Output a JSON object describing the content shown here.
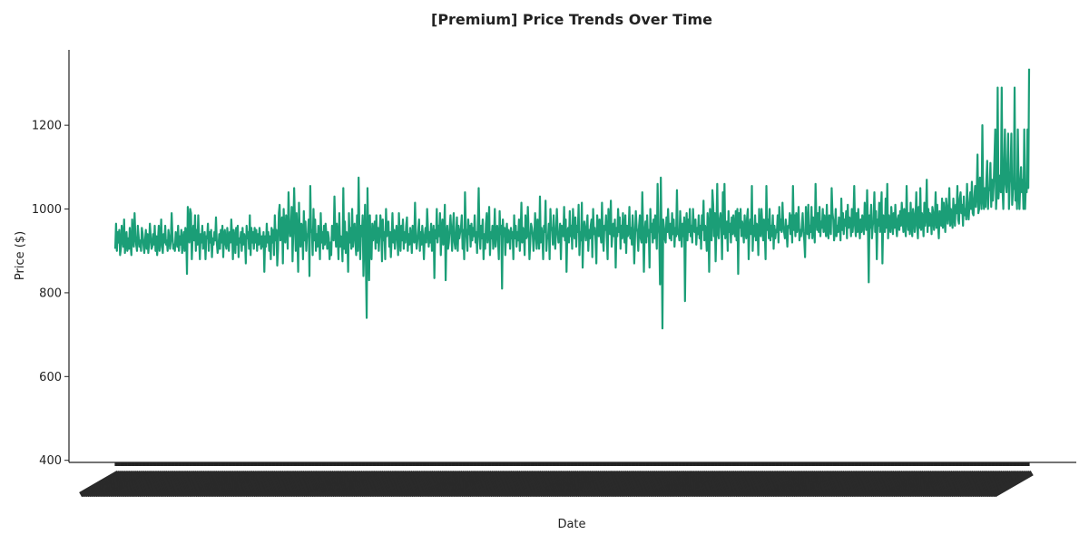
{
  "chart_data": {
    "type": "line",
    "title": "[Premium] Price Trends Over Time",
    "xlabel": "Date",
    "ylabel": "Price ($)",
    "ylim": [
      395,
      1380
    ],
    "yticks": [
      400,
      600,
      800,
      1000,
      1200
    ],
    "grid": false,
    "legend": "none",
    "line_color": "#1b9e77",
    "x_tick_labels_note": "",
    "series": [
      {
        "name": "",
        "values": [
          905,
          965,
          900,
          945,
          920,
          950,
          890,
          905,
          960,
          930,
          910,
          975,
          895,
          920,
          945,
          900,
          930,
          905,
          955,
          915,
          890,
          975,
          925,
          910,
          990,
          935,
          915,
          900,
          960,
          935,
          910,
          925,
          900,
          955,
          940,
          915,
          895,
          925,
          950,
          905,
          940,
          895,
          920,
          965,
          935,
          905,
          910,
          940,
          915,
          960,
          900,
          935,
          890,
          925,
          960,
          900,
          930,
          975,
          910,
          895,
          940,
          920,
          960,
          915,
          925,
          900,
          950,
          930,
          905,
          925,
          990,
          935,
          905,
          915,
          900,
          945,
          930,
          910,
          960,
          900,
          935,
          915,
          950,
          895,
          925,
          945,
          900,
          955,
          940,
          845,
          1005,
          960,
          920,
          1000,
          990,
          880,
          935,
          960,
          925,
          985,
          900,
          950,
          915,
          985,
          930,
          880,
          940,
          920,
          960,
          905,
          915,
          945,
          880,
          935,
          930,
          965,
          900,
          945,
          920,
          950,
          885,
          930,
          915,
          945,
          925,
          980,
          920,
          895,
          910,
          940,
          905,
          950,
          920,
          960,
          885,
          940,
          950,
          915,
          905,
          955,
          930,
          900,
          945,
          920,
          975,
          940,
          880,
          950,
          930,
          895,
          955,
          915,
          960,
          885,
          930,
          920,
          945,
          900,
          955,
          915,
          940,
          925,
          870,
          960,
          930,
          945,
          905,
          985,
          890,
          955,
          920,
          945,
          905,
          955,
          920,
          950,
          900,
          940,
          915,
          955,
          930,
          905,
          935,
          910,
          945,
          850,
          935,
          910,
          965,
          920,
          945,
          900,
          935,
          880,
          955,
          920,
          950,
          890,
          985,
          925,
          950,
          865,
          905,
          990,
          1010,
          925,
          955,
          980,
          870,
          1000,
          940,
          920,
          985,
          960,
          905,
          1040,
          965,
          935,
          950,
          1005,
          875,
          950,
          1050,
          965,
          900,
          990,
          930,
          850,
          1015,
          935,
          910,
          965,
          955,
          880,
          995,
          925,
          970,
          900,
          940,
          940,
          975,
          840,
          1055,
          945,
          950,
          890,
          1000,
          925,
          975,
          900,
          940,
          910,
          960,
          935,
          880,
          990,
          920,
          945,
          905,
          960,
          915,
          965,
          940,
          905,
          945,
          930,
          880,
          920,
          890,
          960,
          945,
          925,
          1030,
          950,
          910,
          965,
          935,
          880,
          990,
          910,
          935,
          925,
          875,
          1050,
          905,
          970,
          895,
          945,
          930,
          850,
          990,
          920,
          955,
          905,
          1000,
          910,
          945,
          965,
          920,
          890,
          985,
          900,
          1075,
          945,
          880,
          960,
          935,
          985,
          840,
          920,
          1010,
          870,
          740,
          1050,
          925,
          830,
          985,
          900,
          880,
          965,
          925,
          945,
          970,
          905,
          985,
          920,
          955,
          900,
          940,
          985,
          960,
          875,
          975,
          925,
          945,
          880,
          1000,
          935,
          955,
          970,
          910,
          945,
          885,
          930,
          990,
          920,
          950,
          905,
          935,
          960,
          935,
          890,
          990,
          935,
          900,
          960,
          925,
          975,
          905,
          945,
          920,
          960,
          980,
          900,
          940,
          915,
          955,
          935,
          895,
          960,
          940,
          920,
          1015,
          935,
          905,
          925,
          950,
          975,
          900,
          945,
          915,
          960,
          930,
          880,
          935,
          955,
          920,
          1000,
          955,
          910,
          945,
          920,
          965,
          900,
          935,
          960,
          835,
          950,
          930,
          1000,
          920,
          960,
          935,
          990,
          890,
          950,
          975,
          915,
          945,
          1010,
          830,
          935,
          960,
          905,
          920,
          955,
          985,
          945,
          900,
          955,
          990,
          920,
          905,
          940,
          980,
          900,
          960,
          930,
          945,
          955,
          985,
          905,
          950,
          880,
          1040,
          955,
          930,
          900,
          975,
          940,
          960,
          910,
          965,
          925,
          955,
          935,
          985,
          920,
          945,
          895,
          965,
          1050,
          935,
          905,
          960,
          930,
          975,
          880,
          940,
          905,
          965,
          990,
          920,
          950,
          1005,
          890,
          945,
          930,
          960,
          905,
          935,
          1000,
          910,
          945,
          960,
          925,
          880,
          995,
          940,
          960,
          810,
          975,
          935,
          955,
          890,
          940,
          965,
          920,
          950,
          940,
          905,
          955,
          930,
          945,
          880,
          985,
          930,
          960,
          910,
          945,
          925,
          975,
          900,
          940,
          1015,
          920,
          955,
          945,
          890,
          985,
          930,
          935,
          1005,
          945,
          880,
          920,
          965,
          955,
          940,
          900,
          930,
          990,
          945,
          905,
          975,
          950,
          905,
          1030,
          920,
          955,
          935,
          880,
          960,
          945,
          1020,
          900,
          935,
          930,
          965,
          880,
          1000,
          950,
          955,
          915,
          985,
          935,
          905,
          950,
          1000,
          945,
          920,
          930,
          965,
          880,
          960,
          940,
          935,
          1005,
          925,
          975,
          850,
          945,
          955,
          920,
          995,
          935,
          960,
          905,
          1000,
          955,
          930,
          980,
          910,
          960,
          945,
          1010,
          890,
          945,
          925,
          1015,
          860,
          935,
          970,
          945,
          925,
          960,
          985,
          900,
          950,
          930,
          960,
          975,
          885,
          1000,
          940,
          955,
          925,
          870,
          985,
          960,
          935,
          975,
          945,
          920,
          1015,
          935,
          900,
          960,
          950,
          985,
          930,
          880,
          1000,
          955,
          940,
          1020,
          910,
          945,
          965,
          935,
          975,
          860,
          955,
          935,
          1000,
          945,
          980,
          905,
          960,
          930,
          990,
          950,
          920,
          985,
          895,
          960,
          935,
          945,
          1005,
          930,
          955,
          915,
          985,
          945,
          870,
          930,
          995,
          955,
          945,
          900,
          960,
          985,
          930,
          920,
          1040,
          955,
          850,
          945,
          970,
          920,
          985,
          935,
          950,
          860,
          1000,
          945,
          965,
          920,
          975,
          930,
          985,
          950,
          905,
          1060,
          960,
          940,
          820,
          1075,
          935,
          715,
          975,
          955,
          930,
          920,
          980,
          945,
          1000,
          950,
          930,
          965,
          925,
          990,
          940,
          975,
          910,
          955,
          935,
          1045,
          940,
          945,
          925,
          995,
          950,
          910,
          965,
          935,
          980,
          780,
          950,
          990,
          925,
          975,
          945,
          1000,
          935,
          960,
          920,
          1000,
          950,
          945,
          975,
          915,
          955,
          940,
          985,
          930,
          960,
          905,
          985,
          950,
          1020,
          925,
          960,
          945,
          900,
          990,
          960,
          850,
          1000,
          945,
          925,
          1045,
          1010,
          935,
          990,
          875,
          955,
          1060,
          940,
          930,
          975,
          990,
          965,
          880,
          1040,
          940,
          1060,
          930,
          960,
          970,
          900,
          995,
          945,
          965,
          920,
          980,
          940,
          985,
          950,
          935,
          995,
          925,
          1000,
          845,
          990,
          955,
          1000,
          935,
          970,
          950,
          920,
          985,
          950,
          930,
          980,
          1000,
          880,
          950,
          975,
          940,
          1055,
          900,
          960,
          935,
          985,
          925,
          965,
          955,
          890,
          1000,
          945,
          935,
          1000,
          960,
          925,
          975,
          945,
          880,
          1055,
          950,
          975,
          930,
          1000,
          925,
          960,
          935,
          985,
          905,
          960,
          930,
          950,
          945,
          985,
          920,
          1005,
          950,
          975,
          945,
          1015,
          960,
          945,
          930,
          975,
          945,
          910,
          960,
          955,
          990,
          940,
          985,
          920,
          1055,
          950,
          985,
          935,
          990,
          945,
          965,
          1005,
          925,
          950,
          935,
          960,
          990,
          945,
          925,
          885,
          1005,
          945,
          940,
          1010,
          930,
          960,
          945,
          1005,
          930,
          980,
          960,
          920,
          1060,
          975,
          950,
          990,
          945,
          1005,
          935,
          970,
          955,
          1000,
          945,
          985,
          960,
          935,
          1010,
          945,
          930,
          985,
          960,
          940,
          1050,
          990,
          975,
          925,
          945,
          1000,
          935,
          960,
          945,
          980,
          965,
          925,
          1025,
          950,
          990,
          940,
          975,
          960,
          995,
          930,
          1010,
          955,
          980,
          975,
          935,
          1000,
          945,
          975,
          1055,
          960,
          935,
          990,
          945,
          1000,
          960,
          930,
          975,
          945,
          985,
          960,
          940,
          1015,
          975,
          950,
          1045,
          960,
          825,
          985,
          955,
          1010,
          930,
          960,
          975,
          1040,
          945,
          995,
          880,
          975,
          960,
          1015,
          945,
          990,
          1040,
          870,
          985,
          960,
          945,
          1025,
          955,
          1060,
          930,
          985,
          960,
          945,
          1005,
          975,
          940,
          990,
          955,
          1010,
          960,
          935,
          975,
          985,
          950,
          995,
          960,
          1015,
          975,
          945,
          1000,
          960,
          935,
          1055,
          975,
          950,
          990,
          940,
          1015,
          960,
          935,
          1000,
          985,
          945,
          975,
          1040,
          960,
          930,
          1005,
          955,
          1050,
          950,
          990,
          975,
          935,
          1015,
          960,
          985,
          1070,
          945,
          1000,
          960,
          990,
          980,
          940,
          1005,
          990,
          950,
          975,
          1040,
          955,
          1010,
          960,
          930,
          995,
          985,
          960,
          1025,
          955,
          1015,
          975,
          945,
          1025,
          1005,
          965,
          990,
          1050,
          960,
          1000,
          975,
          955,
          1025,
          985,
          960,
          1010,
          990,
          1055,
          975,
          965,
          1025,
          1040,
          990,
          1010,
          960,
          1030,
          985,
          1000,
          975,
          1060,
          995,
          975,
          1010,
          1040,
          1000,
          1065,
          990,
          985,
          1025,
          1055,
          1005,
          1040,
          1130,
          990,
          1000,
          1075,
          1040,
          1000,
          1200,
          1030,
          1000,
          1050,
          1005,
          1070,
          1115,
          1000,
          1050,
          1045,
          1110,
          1005,
          1070,
          1020,
          1055,
          1120,
          1190,
          1000,
          1045,
          1290,
          1025,
          1060,
          1080,
          1040,
          1290,
          1050,
          1000,
          1100,
          1190,
          1060,
          1040,
          1100,
          1180,
          1000,
          1060,
          1090,
          1180,
          1010,
          1045,
          1050,
          1290,
          1020,
          1060,
          1000,
          1190,
          1050,
          1000,
          1060,
          1100,
          1040,
          1070,
          1000,
          1190,
          1000,
          1060,
          1040,
          1190,
          1050,
          1335
        ]
      }
    ]
  }
}
